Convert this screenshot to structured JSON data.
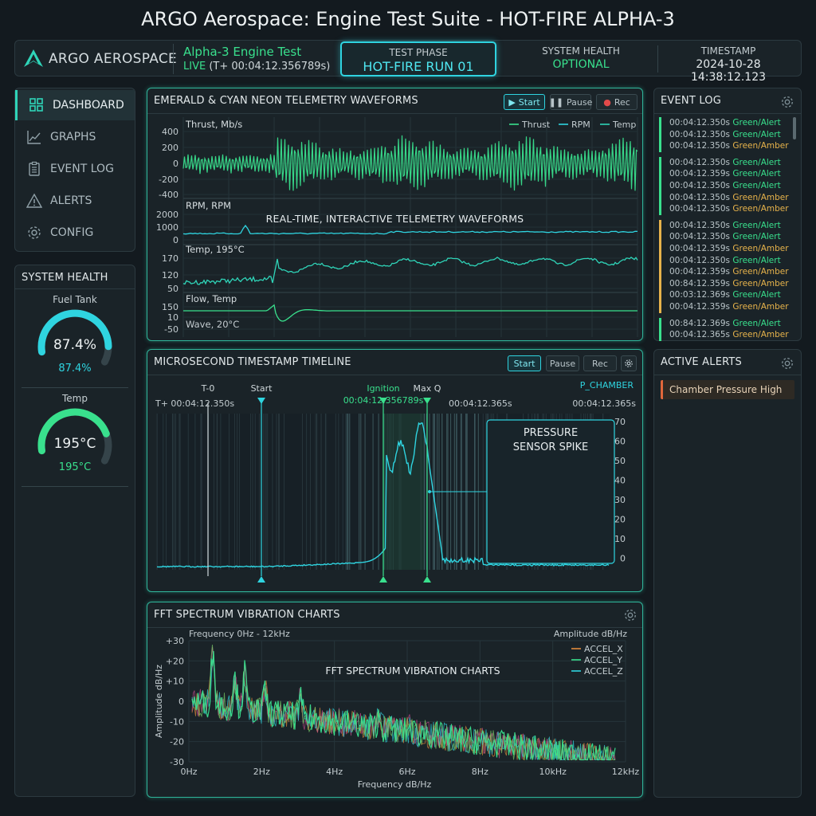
{
  "app_title": "ARGO Aerospace: Engine Test Suite - HOT-FIRE ALPHA-3",
  "header": {
    "logo_text": "ARGO AEROSPACE",
    "test_name": "Alpha-3 Engine Test",
    "live_label": "LIVE",
    "live_time": "(T+ 00:04:12.356789s)",
    "test_phase_label": "TEST PHASE",
    "test_phase_value": "HOT-FIRE RUN 01",
    "system_health_label": "SYSTEM HEALTH",
    "system_health_value": "OPTIONAL",
    "timestamp_label": "TIMESTAMP",
    "timestamp_value": "2024-10-28 14:38:12.123"
  },
  "nav": {
    "items": [
      {
        "label": "DASHBOARD",
        "icon": "dashboard-icon",
        "active": true
      },
      {
        "label": "GRAPHS",
        "icon": "graph-icon",
        "active": false
      },
      {
        "label": "EVENT LOG",
        "icon": "clipboard-icon",
        "active": false
      },
      {
        "label": "ALERTS",
        "icon": "warning-icon",
        "active": false
      },
      {
        "label": "CONFIG",
        "icon": "gear-icon",
        "active": false
      }
    ]
  },
  "system_health": {
    "title": "SYSTEM HEALTH",
    "gauges": [
      {
        "label": "Fuel Tank",
        "value": "87.4%",
        "sub": "87.4%",
        "fraction": 0.874,
        "color": "#2fd4e0"
      },
      {
        "label": "Temp",
        "value": "195°C",
        "sub": "195°C",
        "fraction": 0.78,
        "color": "#39e08d"
      }
    ]
  },
  "telemetry": {
    "title": "EMERALD & CYAN NEON TELEMETRY WAVEFORMS",
    "buttons": {
      "start": "Start",
      "pause": "Pause",
      "rec": "Rec"
    },
    "legend": [
      "Thrust",
      "RPM",
      "Temp"
    ],
    "overlay_text": "REAL-TIME, INTERACTIVE TELEMETRY WAVEFORMS",
    "tracks": [
      {
        "label": "Thrust, Mb/s",
        "ticks": [
          "400",
          "200",
          "0",
          "-200",
          "-400"
        ]
      },
      {
        "label": "RPM, RPM",
        "ticks": [
          "2000",
          "1000",
          "0"
        ]
      },
      {
        "label": "Temp, 195°C",
        "ticks": [
          "170",
          "120",
          "50"
        ]
      },
      {
        "label": "Flow, Temp",
        "sub_label": "Wave, 20°C",
        "ticks": [
          "150",
          "10",
          "-50"
        ]
      }
    ]
  },
  "timeline": {
    "title": "MICROSECOND TIMESTAMP TIMELINE",
    "buttons": {
      "start": "Start",
      "pause": "Pause",
      "rec": "Rec"
    },
    "markers": {
      "t0": "T-0",
      "start": "Start",
      "ignition": "Ignition",
      "ignition_time": "00:04:12.356789s",
      "maxq": "Max Q"
    },
    "time_labels": [
      "T+ 00:04:12.350s",
      "00:04:12.365s",
      "00:04:12.365s"
    ],
    "series_label": "P_CHAMBER",
    "y_ticks": [
      "70",
      "60",
      "50",
      "40",
      "30",
      "20",
      "10",
      "0"
    ],
    "inset_title_1": "PRESSURE",
    "inset_title_2": "SENSOR SPIKE"
  },
  "fft": {
    "title": "FFT SPECTRUM VIBRATION CHARTS",
    "overlay_text": "FFT SPECTRUM VIBRATION CHARTS",
    "range_label": "Frequency 0Hz - 12kHz",
    "amp_label": "Amplitude dB/Hz",
    "ylabel": "Amplitude dB/Hz",
    "xlabel": "Frequency dB/Hz",
    "y_ticks": [
      "+30",
      "+20",
      "+10",
      "0",
      "-10",
      "-20",
      "-30"
    ],
    "x_ticks": [
      "0Hz",
      "2Hz",
      "4Hz",
      "6Hz",
      "8Hz",
      "10kHz",
      "12kHz"
    ],
    "legend": [
      {
        "name": "ACCEL_X",
        "color": "#e08a3c"
      },
      {
        "name": "ACCEL_Y",
        "color": "#39e08d"
      },
      {
        "name": "ACCEL_Z",
        "color": "#2fd4e0"
      }
    ]
  },
  "event_log": {
    "title": "EVENT LOG",
    "groups": [
      {
        "color": "#39e08d",
        "rows": [
          {
            "time": "00:04:12.350s",
            "status": "Green/Alert"
          },
          {
            "time": "00:04:12.350s",
            "status": "Green/Alert"
          },
          {
            "time": "00:04:12.350s",
            "status": "Green/Amber"
          }
        ]
      },
      {
        "color": "#39e08d",
        "rows": [
          {
            "time": "00:04:12.350s",
            "status": "Green/Alert"
          },
          {
            "time": "00:04:12.359s",
            "status": "Green/Alert"
          },
          {
            "time": "00:04:12.350s",
            "status": "Green/Alert"
          },
          {
            "time": "00:04:12.350s",
            "status": "Green/Amber"
          },
          {
            "time": "00:04:12.350s",
            "status": "Green/Amber"
          }
        ]
      },
      {
        "color": "#e7b34b",
        "rows": [
          {
            "time": "00:04:12.350s",
            "status": "Green/Alert"
          },
          {
            "time": "00:04:12.350s",
            "status": "Green/Alert"
          },
          {
            "time": "00:04:12.359s",
            "status": "Green/Amber"
          },
          {
            "time": "00:04:12.350s",
            "status": "Green/Alert"
          },
          {
            "time": "00:04:12.359s",
            "status": "Green/Amber"
          },
          {
            "time": "00:84:12.359s",
            "status": "Green/Amber"
          },
          {
            "time": "00:03:12.369s",
            "status": "Green/Alert"
          },
          {
            "time": "00:04:12.359s",
            "status": "Green/Amber"
          }
        ]
      },
      {
        "color": "#39e08d",
        "rows": [
          {
            "time": "00:84:12.369s",
            "status": "Green/Alert"
          },
          {
            "time": "00:04:12.365s",
            "status": "Green/Amber"
          }
        ]
      }
    ]
  },
  "active_alerts": {
    "title": "ACTIVE ALERTS",
    "items": [
      "Chamber Pressure High"
    ]
  }
}
